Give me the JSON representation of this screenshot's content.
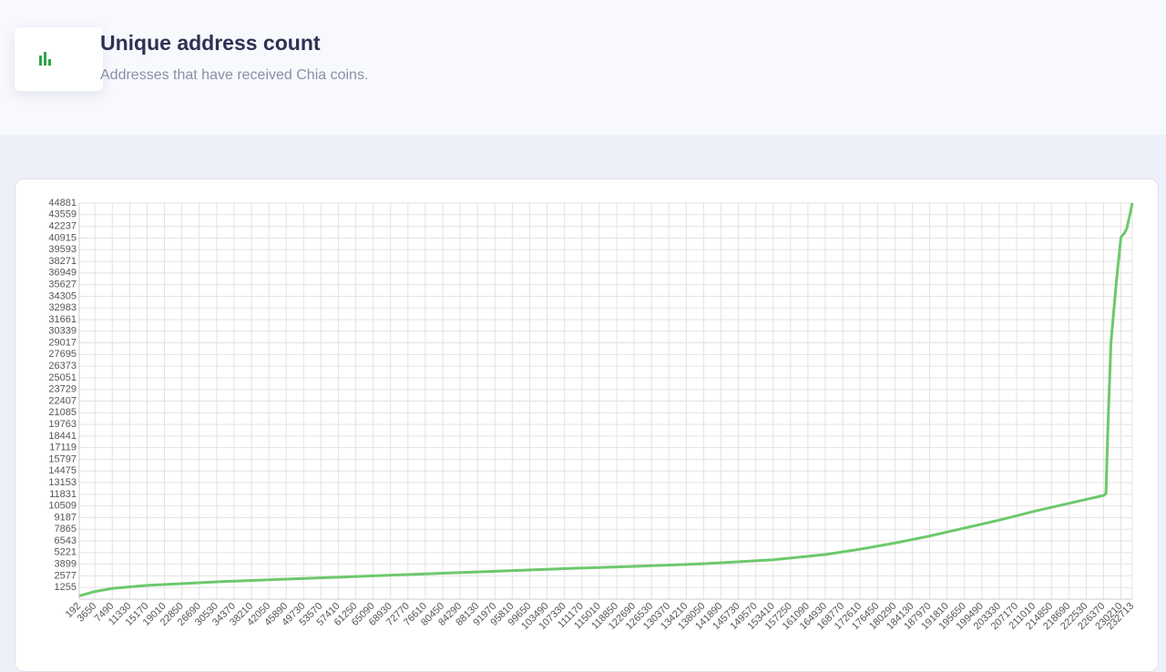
{
  "header": {
    "title": "Unique address count",
    "subtitle": "Addresses that have received Chia coins."
  },
  "chart_data": {
    "type": "line",
    "x": [
      192,
      3650,
      7490,
      15170,
      30530,
      45890,
      61250,
      76610,
      92000,
      107330,
      122690,
      138050,
      153410,
      164930,
      172610,
      180290,
      187970,
      195650,
      203330,
      211010,
      218690,
      226370,
      226900,
      227300,
      228000,
      229200,
      230210,
      231000,
      231500,
      232200,
      232713
    ],
    "series": [
      {
        "name": "Unique address count",
        "color": "#6cc96c",
        "values": [
          300,
          800,
          1150,
          1500,
          1900,
          2200,
          2500,
          2800,
          3100,
          3400,
          3650,
          3950,
          4400,
          5000,
          5600,
          6300,
          7100,
          8000,
          8900,
          9900,
          10800,
          11700,
          11900,
          19000,
          29000,
          36000,
          41000,
          41500,
          42000,
          43600,
          44881
        ]
      }
    ],
    "xlim": [
      192,
      232713
    ],
    "xticks": [
      192,
      3650,
      7490,
      11330,
      15170,
      19010,
      22850,
      26690,
      30530,
      34370,
      38210,
      42050,
      45890,
      49730,
      53570,
      57410,
      61250,
      65090,
      68930,
      72770,
      76610,
      80450,
      84290,
      88130,
      91970,
      95810,
      99650,
      103490,
      107330,
      111170,
      115010,
      118850,
      122690,
      126530,
      130370,
      134210,
      138050,
      141890,
      145730,
      149570,
      153410,
      157250,
      161090,
      164930,
      168770,
      172610,
      176450,
      180290,
      184130,
      187970,
      191810,
      195650,
      199490,
      203330,
      207170,
      211010,
      214850,
      218690,
      222530,
      226370,
      230210,
      232713
    ],
    "ylim": [
      -67,
      44881
    ],
    "yticks": [
      1255,
      2577,
      3899,
      5221,
      6543,
      7865,
      9187,
      10509,
      11831,
      13153,
      14475,
      15797,
      17119,
      18441,
      19763,
      21085,
      22407,
      23729,
      25051,
      26373,
      27695,
      29017,
      30339,
      31661,
      32983,
      34305,
      35627,
      36949,
      38271,
      39593,
      40915,
      42237,
      43559,
      44881
    ],
    "grid": true
  }
}
